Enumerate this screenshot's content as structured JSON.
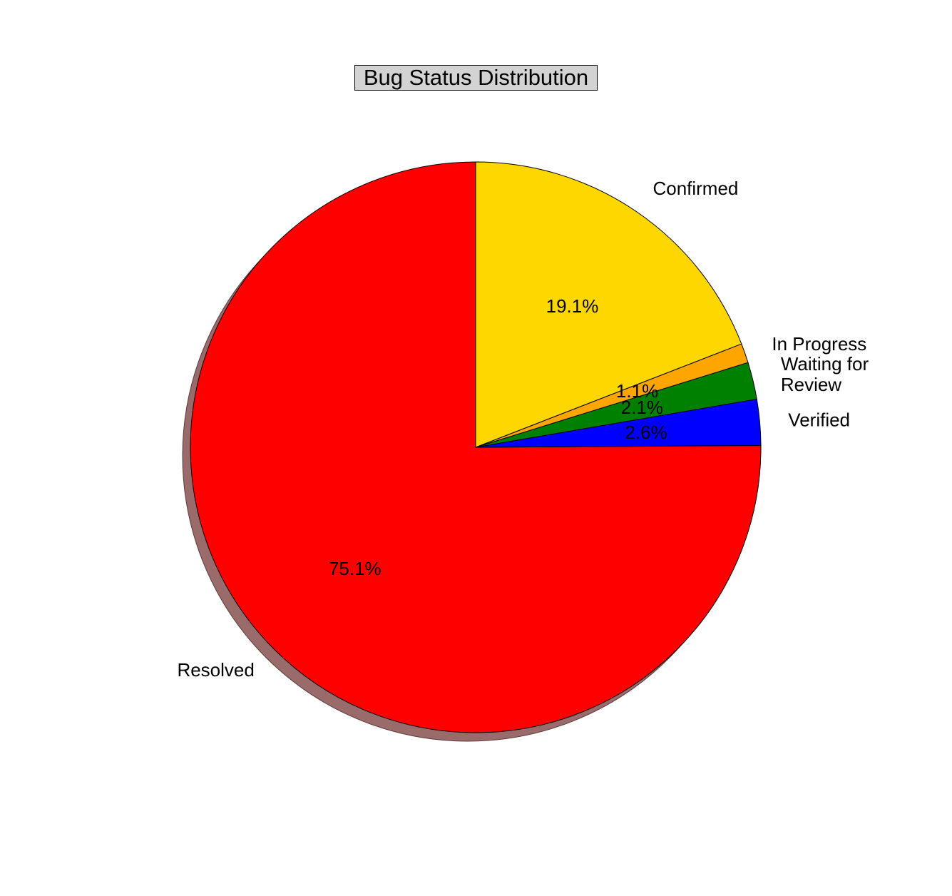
{
  "chart_data": {
    "type": "pie",
    "title": "Bug Status Distribution",
    "start_angle_deg": 90,
    "direction": "counterclockwise",
    "shadow": true,
    "slices": [
      {
        "label": "Resolved",
        "value": 75.1,
        "pct_label": "75.1%",
        "color": "#ff0000"
      },
      {
        "label": "Verified",
        "value": 2.6,
        "pct_label": "2.6%",
        "color": "#0000ff"
      },
      {
        "label": "Waiting for\nReview",
        "value": 2.1,
        "pct_label": "2.1%",
        "color": "#008000"
      },
      {
        "label": "In Progress",
        "value": 1.1,
        "pct_label": "1.1%",
        "color": "#ffa500"
      },
      {
        "label": "Confirmed",
        "value": 19.1,
        "pct_label": "19.1%",
        "color": "#ffd700"
      }
    ]
  }
}
